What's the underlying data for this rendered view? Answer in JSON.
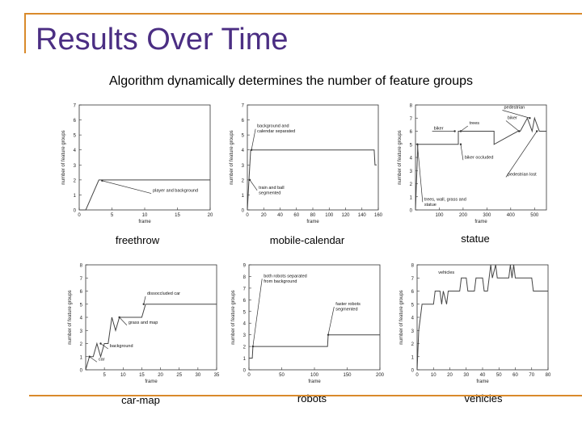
{
  "slide": {
    "title": "Results Over Time",
    "subtitle": "Algorithm dynamically determines the number of feature groups",
    "accent_color": "#d98a2b",
    "title_color": "#4b2e83"
  },
  "chart_data": [
    {
      "type": "line",
      "caption": "freethrow",
      "xlabel": "frame",
      "ylabel": "number of feature groups",
      "xlim": [
        0,
        20
      ],
      "ylim": [
        0,
        7
      ],
      "xticks": [
        0,
        5,
        10,
        15,
        20
      ],
      "yticks": [
        0,
        1,
        2,
        3,
        4,
        5,
        6,
        7
      ],
      "x": [
        0,
        1,
        2,
        3,
        20
      ],
      "y": [
        0,
        0,
        1,
        2,
        2
      ],
      "annotations": [
        {
          "text": "player and background",
          "x": 11,
          "y": 1.1,
          "to_x": 3.5,
          "to_y": 1.95
        }
      ]
    },
    {
      "type": "line",
      "caption": "mobile-calendar",
      "xlabel": "frame",
      "ylabel": "number of feature groups",
      "xlim": [
        0,
        160
      ],
      "ylim": [
        0,
        7
      ],
      "xticks": [
        0,
        20,
        40,
        60,
        80,
        100,
        120,
        140,
        160
      ],
      "yticks": [
        0,
        1,
        2,
        3,
        4,
        5,
        6,
        7
      ],
      "x": [
        0,
        1,
        2,
        4,
        155,
        156,
        158
      ],
      "y": [
        0,
        1,
        2,
        4,
        4,
        3,
        3
      ],
      "annotations": [
        {
          "text": "background and calendar separated",
          "x": 10,
          "y": 5.4,
          "to_x": 5,
          "to_y": 4
        },
        {
          "text": "train and ball segmented",
          "x": 12,
          "y": 1.3,
          "to_x": 3,
          "to_y": 2
        }
      ]
    },
    {
      "type": "line",
      "caption": "statue",
      "xlabel": "frame",
      "ylabel": "number of feature groups",
      "xlim": [
        0,
        550
      ],
      "ylim": [
        0,
        8
      ],
      "xticks": [
        100,
        200,
        300,
        400,
        500
      ],
      "yticks": [
        0,
        1,
        2,
        3,
        4,
        5,
        6,
        7,
        8
      ],
      "x": [
        0,
        10,
        20,
        180,
        180,
        330,
        330,
        430,
        440,
        470,
        490,
        500,
        520,
        540,
        550
      ],
      "y": [
        0,
        5,
        5,
        5,
        6,
        6,
        5,
        6,
        6,
        7,
        6,
        7,
        6,
        6,
        6
      ],
      "annotations": [
        {
          "text": "pedestrian",
          "x": 365,
          "y": 7.6,
          "to_x": 480,
          "to_y": 7
        },
        {
          "text": "biker",
          "x": 380,
          "y": 6.8,
          "to_x": 435,
          "to_y": 6
        },
        {
          "text": "trees",
          "x": 220,
          "y": 6.4,
          "to_x": 190,
          "to_y": 6
        },
        {
          "text": "biker",
          "x": 70,
          "y": 6.0,
          "to_x": 165,
          "to_y": 6
        },
        {
          "text": "biker occluded",
          "x": 200,
          "y": 3.8,
          "to_x": 190,
          "to_y": 5
        },
        {
          "text": "pedestrian lost",
          "x": 380,
          "y": 2.5,
          "to_x": 510,
          "to_y": 6
        },
        {
          "text": "trees, wall, grass and statue",
          "x": 30,
          "y": 0.6,
          "to_x": 8,
          "to_y": 5
        }
      ]
    },
    {
      "type": "line",
      "caption": "car-map",
      "xlabel": "frame",
      "ylabel": "number of feature groups",
      "xlim": [
        0,
        35
      ],
      "ylim": [
        0,
        8
      ],
      "xticks": [
        5,
        10,
        15,
        20,
        25,
        30,
        35
      ],
      "yticks": [
        0,
        1,
        2,
        3,
        4,
        5,
        6,
        7,
        8
      ],
      "x": [
        0,
        1,
        2,
        3,
        4,
        5,
        6,
        7,
        8,
        9,
        15,
        16,
        35
      ],
      "y": [
        0,
        1,
        1,
        2,
        1,
        2,
        2,
        4,
        3,
        4,
        4,
        5,
        5
      ],
      "annotations": [
        {
          "text": "dissoccluded car",
          "x": 16,
          "y": 5.6,
          "to_x": 15.5,
          "to_y": 5
        },
        {
          "text": "grass and map",
          "x": 11,
          "y": 3.4,
          "to_x": 9,
          "to_y": 4
        },
        {
          "text": "background",
          "x": 6,
          "y": 1.6,
          "to_x": 4,
          "to_y": 2
        },
        {
          "text": "car",
          "x": 3,
          "y": 0.6,
          "to_x": 1,
          "to_y": 1
        }
      ]
    },
    {
      "type": "line",
      "caption": "robots",
      "xlabel": "frame",
      "ylabel": "number of feature groups",
      "xlim": [
        0,
        200
      ],
      "ylim": [
        0,
        9
      ],
      "xticks": [
        0,
        50,
        100,
        150,
        200
      ],
      "yticks": [
        0,
        1,
        2,
        3,
        4,
        5,
        6,
        7,
        8,
        9
      ],
      "x": [
        0,
        5,
        6,
        120,
        121,
        200
      ],
      "y": [
        1,
        1,
        2,
        2,
        3,
        3
      ],
      "annotations": [
        {
          "text": "both robots separated from background",
          "x": 20,
          "y": 7.8,
          "to_x": 6,
          "to_y": 2
        },
        {
          "text": "faster robots segmented",
          "x": 130,
          "y": 5.4,
          "to_x": 121,
          "to_y": 3
        }
      ]
    },
    {
      "type": "line",
      "caption": "vehicles",
      "xlabel": "frame",
      "ylabel": "number of feature groups",
      "xlim": [
        0,
        80
      ],
      "ylim": [
        0,
        8
      ],
      "xticks": [
        0,
        10,
        20,
        30,
        40,
        50,
        60,
        70,
        80
      ],
      "yticks": [
        0,
        1,
        2,
        3,
        4,
        5,
        6,
        7,
        8
      ],
      "x": [
        0,
        1,
        2,
        3,
        10,
        11,
        14,
        15,
        16,
        18,
        19,
        20,
        26,
        27,
        30,
        31,
        35,
        36,
        40,
        41,
        43,
        44,
        45,
        46,
        48,
        49,
        50,
        56,
        57,
        58,
        59,
        60,
        70,
        71,
        78,
        80
      ],
      "y": [
        0,
        3,
        4,
        5,
        5,
        6,
        6,
        5,
        6,
        5,
        6,
        6,
        6,
        7,
        7,
        6,
        6,
        7,
        7,
        6,
        6,
        7,
        8,
        7,
        8,
        7,
        7,
        7,
        8,
        7,
        8,
        7,
        7,
        6,
        6,
        6
      ],
      "annotations": [
        {
          "text": "vehicles",
          "x": 12,
          "y": 7.2,
          "to_x": 12,
          "to_y": 7.2
        }
      ]
    }
  ]
}
